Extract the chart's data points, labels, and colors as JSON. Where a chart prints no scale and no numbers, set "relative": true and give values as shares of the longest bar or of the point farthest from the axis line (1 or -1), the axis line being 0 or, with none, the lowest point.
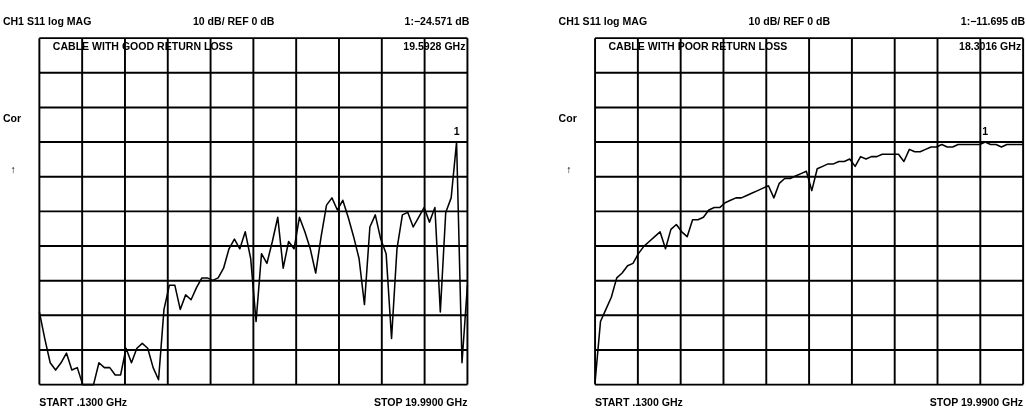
{
  "chart_data": [
    {
      "type": "line",
      "relative": true,
      "title": "CH1 S11 log MAG",
      "annotations": [
        "10 dB/ REF 0 dB",
        "1:−24.571 dB",
        "CABLE WITH GOOD RETURN LOSS",
        "19.5928 GHz",
        "Cor",
        "↑",
        "START .1300 GHz",
        "STOP 19.9900 GHz",
        {
          "text": "1",
          "y": 1.0
        }
      ],
      "categories": [
        null,
        null,
        null,
        null,
        null,
        null,
        null,
        null,
        null,
        null,
        null,
        null,
        null,
        null,
        null,
        null,
        null,
        null,
        null,
        null,
        null,
        null,
        null,
        null,
        null,
        null,
        null,
        null,
        null,
        null,
        null,
        null,
        null,
        null,
        null,
        null,
        null,
        null,
        null,
        null,
        null,
        null,
        null,
        null,
        null,
        null,
        null,
        null,
        null,
        null,
        null,
        null,
        null,
        null,
        null,
        null,
        null,
        null,
        null,
        null,
        null,
        null,
        null,
        null,
        null,
        null,
        null,
        null,
        null,
        null,
        null,
        null,
        null,
        null,
        null,
        null,
        null,
        null,
        null,
        null
      ],
      "grid": true,
      "line_style": "solid",
      "series": [
        {
          "color": "#000000",
          "values": [
            0.3,
            0.19,
            0.09,
            0.06,
            0.09,
            0.13,
            0.06,
            0.07,
            0,
            0,
            0,
            0.09,
            0.07,
            0.07,
            0.04,
            0.04,
            0.15,
            0.09,
            0.15,
            0.17,
            0.15,
            0.07,
            0.02,
            0.31,
            0.41,
            0.41,
            0.31,
            0.37,
            0.35,
            0.4,
            0.44,
            0.44,
            0.43,
            0.44,
            0.48,
            0.56,
            0.6,
            0.56,
            0.63,
            0.52,
            0.26,
            0.54,
            0.5,
            0.59,
            0.69,
            0.48,
            0.59,
            0.56,
            0.69,
            0.63,
            0.56,
            0.46,
            0.61,
            0.74,
            0.77,
            0.72,
            0.76,
            0.69,
            0.61,
            0.52,
            0.33,
            0.65,
            0.7,
            0.6,
            0.54,
            0.19,
            0.56,
            0.7,
            0.71,
            0.65,
            0.69,
            0.73,
            0.67,
            0.73,
            0.3,
            0.71,
            0.77,
            1.0,
            0.09,
            0.41
          ]
        }
      ]
    },
    {
      "type": "line",
      "relative": true,
      "title": "CH1 S11 log MAG",
      "annotations": [
        "10 dB/ REF 0 dB",
        "1:−11.695 dB",
        "CABLE WITH POOR RETURN LOSS",
        "18.3016 GHz",
        "Cor",
        "↑",
        "START .1300 GHz",
        "STOP 19.9900 GHz",
        {
          "text": "1",
          "y": 1.0
        }
      ],
      "categories": [
        null,
        null,
        null,
        null,
        null,
        null,
        null,
        null,
        null,
        null,
        null,
        null,
        null,
        null,
        null,
        null,
        null,
        null,
        null,
        null,
        null,
        null,
        null,
        null,
        null,
        null,
        null,
        null,
        null,
        null,
        null,
        null,
        null,
        null,
        null,
        null,
        null,
        null,
        null,
        null,
        null,
        null,
        null,
        null,
        null,
        null,
        null,
        null,
        null,
        null,
        null,
        null,
        null,
        null,
        null,
        null,
        null,
        null,
        null,
        null,
        null,
        null,
        null,
        null,
        null,
        null,
        null,
        null,
        null,
        null,
        null,
        null,
        null,
        null,
        null,
        null,
        null,
        null,
        null,
        null
      ],
      "grid": true,
      "line_style": "solid",
      "series": [
        {
          "color": "#000000",
          "values": [
            0.01,
            0.26,
            0.31,
            0.36,
            0.44,
            0.46,
            0.49,
            0.5,
            0.54,
            0.57,
            0.59,
            0.61,
            0.63,
            0.56,
            0.64,
            0.66,
            0.63,
            0.61,
            0.68,
            0.68,
            0.69,
            0.72,
            0.73,
            0.73,
            0.75,
            0.76,
            0.77,
            0.77,
            0.78,
            0.79,
            0.8,
            0.81,
            0.82,
            0.77,
            0.83,
            0.85,
            0.85,
            0.86,
            0.87,
            0.88,
            0.8,
            0.89,
            0.9,
            0.91,
            0.91,
            0.92,
            0.92,
            0.93,
            0.9,
            0.94,
            0.93,
            0.94,
            0.94,
            0.95,
            0.95,
            0.95,
            0.95,
            0.92,
            0.97,
            0.96,
            0.96,
            0.97,
            0.98,
            0.98,
            0.99,
            0.98,
            0.98,
            0.99,
            0.99,
            0.99,
            0.99,
            0.99,
            1.0,
            0.99,
            0.99,
            0.98,
            0.99,
            0.99,
            0.99,
            0.99
          ]
        }
      ]
    }
  ]
}
